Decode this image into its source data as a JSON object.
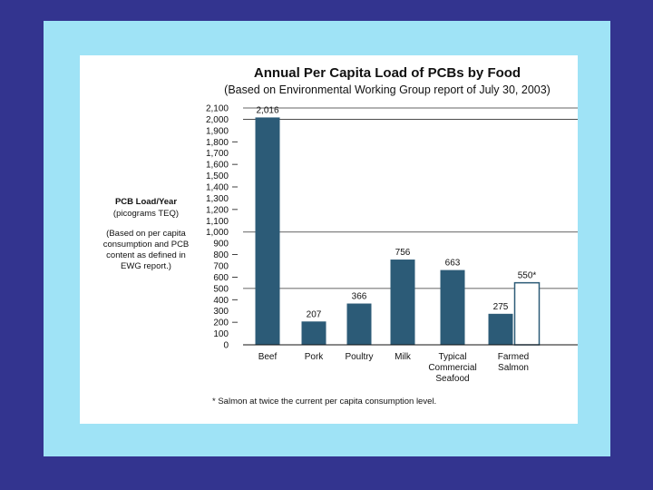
{
  "colors": {
    "background": "#33348f",
    "frame": "#9fe3f6",
    "card": "#ffffff",
    "bar": "#2c5b77",
    "bar_outline": "#2c5b77"
  },
  "chart_data": {
    "type": "bar",
    "title": "Annual Per Capita Load of PCBs by Food",
    "subtitle": "(Based on Environmental Working Group report of July 30, 2003)",
    "ylabel": "PCB Load/Year",
    "ylabel_units": "(picograms TEQ)",
    "ylabel_note": [
      "(Based on per capita",
      "consumption and PCB",
      "content as defined in",
      "EWG report.)"
    ],
    "ylim": [
      0,
      2100
    ],
    "yticks": [
      0,
      100,
      200,
      300,
      400,
      500,
      600,
      700,
      800,
      900,
      1000,
      1100,
      1200,
      1300,
      1400,
      1500,
      1600,
      1700,
      1800,
      1900,
      2000,
      2100
    ],
    "ytick_labels": [
      "0",
      "100",
      "200",
      "300",
      "400",
      "500",
      "600",
      "700",
      "800",
      "900",
      "1,000",
      "1,100",
      "1,200",
      "1,300",
      "1,400",
      "1,500",
      "1,600",
      "1,700",
      "1,800",
      "1,900",
      "2,000",
      "2,100"
    ],
    "gridlines": [
      500,
      1000,
      2000,
      2100
    ],
    "categories": [
      [
        "Beef"
      ],
      [
        "Pork"
      ],
      [
        "Poultry"
      ],
      [
        "Milk"
      ],
      [
        "Typical",
        "Commercial",
        "Seafood"
      ],
      [
        "Farmed",
        "Salmon"
      ]
    ],
    "bars": [
      {
        "category": 0,
        "value": 2016,
        "label": "2,016",
        "style": "filled"
      },
      {
        "category": 1,
        "value": 207,
        "label": "207",
        "style": "filled"
      },
      {
        "category": 2,
        "value": 366,
        "label": "366",
        "style": "filled"
      },
      {
        "category": 3,
        "value": 756,
        "label": "756",
        "style": "filled"
      },
      {
        "category": 4,
        "value": 663,
        "label": "663",
        "style": "filled"
      },
      {
        "category": 5,
        "value": 275,
        "label": "275",
        "style": "filled"
      },
      {
        "category": 5,
        "value": 550,
        "label": "550*",
        "style": "outline"
      }
    ],
    "footnote": "* Salmon at twice the current per capita consumption level."
  }
}
